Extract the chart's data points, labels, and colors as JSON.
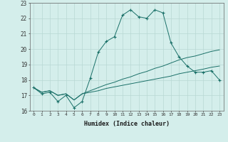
{
  "xlabel": "Humidex (Indice chaleur)",
  "bg_color": "#d4eeeb",
  "grid_color": "#b8d8d4",
  "line_color": "#1a7068",
  "xlim": [
    -0.5,
    23.5
  ],
  "ylim": [
    16,
    23
  ],
  "xticks": [
    0,
    1,
    2,
    3,
    4,
    5,
    6,
    7,
    8,
    9,
    10,
    11,
    12,
    13,
    14,
    15,
    16,
    17,
    18,
    19,
    20,
    21,
    22,
    23
  ],
  "yticks": [
    16,
    17,
    18,
    19,
    20,
    21,
    22,
    23
  ],
  "line1_x": [
    0,
    1,
    2,
    3,
    4,
    5,
    6,
    7,
    8,
    9,
    10,
    11,
    12,
    13,
    14,
    15,
    16,
    17,
    18,
    19,
    20,
    21,
    22,
    23
  ],
  "line1_y": [
    17.5,
    17.1,
    17.2,
    16.6,
    17.0,
    16.2,
    16.6,
    18.1,
    19.8,
    20.5,
    20.8,
    22.2,
    22.55,
    22.1,
    22.0,
    22.55,
    22.35,
    20.4,
    19.5,
    18.9,
    18.5,
    18.5,
    18.6,
    18.0
  ],
  "line2_x": [
    0,
    1,
    2,
    3,
    4,
    5,
    6,
    7,
    8,
    9,
    10,
    11,
    12,
    13,
    14,
    15,
    16,
    17,
    18,
    19,
    20,
    21,
    22,
    23
  ],
  "line2_y": [
    17.5,
    17.2,
    17.3,
    17.0,
    17.1,
    16.7,
    17.1,
    17.3,
    17.5,
    17.7,
    17.85,
    18.05,
    18.2,
    18.4,
    18.55,
    18.75,
    18.9,
    19.1,
    19.3,
    19.45,
    19.55,
    19.7,
    19.85,
    19.95
  ],
  "line3_x": [
    0,
    1,
    2,
    3,
    4,
    5,
    6,
    7,
    8,
    9,
    10,
    11,
    12,
    13,
    14,
    15,
    16,
    17,
    18,
    19,
    20,
    21,
    22,
    23
  ],
  "line3_y": [
    17.5,
    17.2,
    17.3,
    17.0,
    17.1,
    16.7,
    17.1,
    17.2,
    17.3,
    17.45,
    17.55,
    17.65,
    17.75,
    17.85,
    17.95,
    18.05,
    18.15,
    18.25,
    18.4,
    18.5,
    18.6,
    18.7,
    18.82,
    18.9
  ]
}
